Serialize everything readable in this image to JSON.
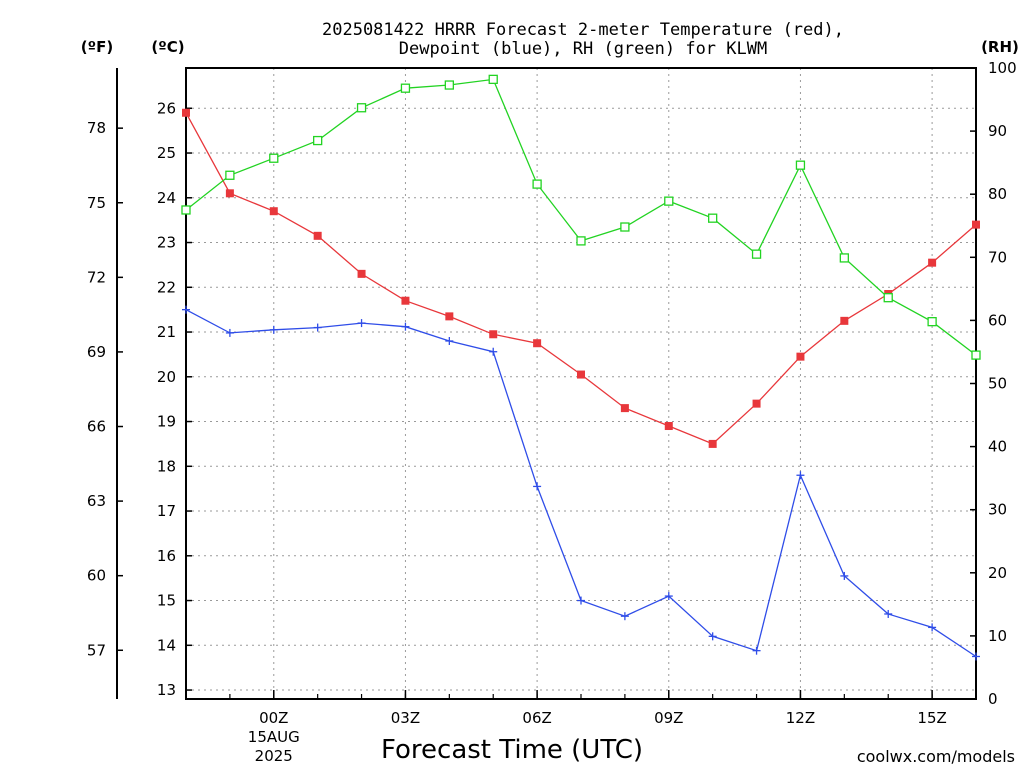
{
  "title_line1": "2025081422 HRRR Forecast 2-meter Temperature (red),",
  "title_line2": "Dewpoint (blue), RH (green) for KLWM",
  "unit_f": "(ºF)",
  "unit_c": "(ºC)",
  "unit_rh": "(RH)",
  "watermark": "coolwx.com/models",
  "colors": {
    "temperature": "#e8373b",
    "dewpoint": "#2f4de8",
    "rh": "#22d322",
    "grid": "#9a9a9a"
  },
  "chart_data": {
    "type": "line",
    "xlabel": "Forecast Time (UTC)",
    "x_hours": [
      -2,
      -1,
      0,
      1,
      2,
      3,
      4,
      5,
      6,
      7,
      8,
      9,
      10,
      11,
      12,
      13,
      14,
      15,
      16
    ],
    "x_ticks": [
      {
        "hour": 0,
        "lines": [
          "00Z",
          "15AUG",
          "2025"
        ]
      },
      {
        "hour": 3,
        "lines": [
          "03Z"
        ]
      },
      {
        "hour": 6,
        "lines": [
          "06Z"
        ]
      },
      {
        "hour": 9,
        "lines": [
          "09Z"
        ]
      },
      {
        "hour": 12,
        "lines": [
          "12Z"
        ]
      },
      {
        "hour": 15,
        "lines": [
          "15Z"
        ]
      }
    ],
    "y_left_c": {
      "ticks": [
        13,
        14,
        15,
        16,
        17,
        18,
        19,
        20,
        21,
        22,
        23,
        24,
        25,
        26
      ],
      "range": [
        12.8,
        26.9
      ]
    },
    "y_left_f": {
      "ticks": [
        57,
        60,
        63,
        66,
        69,
        72,
        75,
        78
      ]
    },
    "y_right_rh": {
      "ticks": [
        0,
        10,
        20,
        30,
        40,
        50,
        60,
        70,
        80,
        90,
        100
      ],
      "range": [
        0,
        100
      ]
    },
    "series": [
      {
        "axis": "c",
        "color": "#e8373b",
        "marker": "filled-square",
        "values": [
          25.9,
          24.1,
          23.7,
          23.15,
          22.3,
          21.7,
          21.35,
          20.95,
          20.75,
          20.05,
          19.3,
          18.9,
          18.5,
          19.4,
          20.45,
          21.25,
          21.85,
          22.55,
          23.4
        ]
      },
      {
        "axis": "c",
        "color": "#2f4de8",
        "marker": "plus",
        "values": [
          21.5,
          20.98,
          21.05,
          21.1,
          21.2,
          21.12,
          20.8,
          20.56,
          17.55,
          15.0,
          14.65,
          15.1,
          14.2,
          13.88,
          17.8,
          15.55,
          14.7,
          14.4,
          13.75
        ]
      },
      {
        "axis": "rh",
        "color": "#22d322",
        "marker": "open-square",
        "values": [
          77.5,
          83.0,
          85.7,
          88.5,
          93.7,
          96.8,
          97.3,
          98.2,
          81.6,
          72.6,
          74.8,
          78.9,
          76.2,
          70.5,
          84.6,
          69.9,
          63.6,
          59.8,
          54.5
        ]
      }
    ]
  }
}
